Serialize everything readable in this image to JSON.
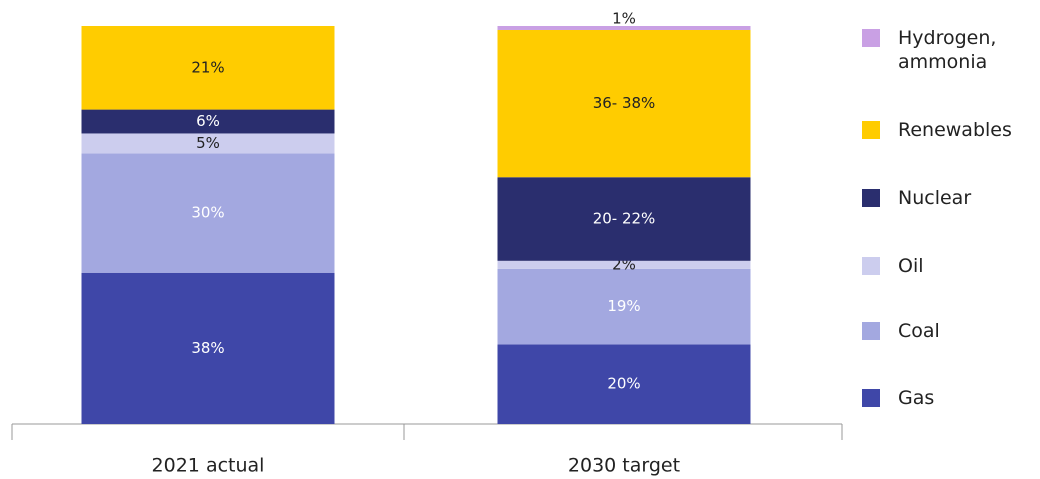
{
  "chart_data": {
    "type": "stacked-bar",
    "categories": [
      "2021 actual",
      "2030 target"
    ],
    "ylim": [
      0,
      100
    ],
    "series": [
      {
        "name": "Gas",
        "color": "#3f47a8",
        "values": [
          38,
          20
        ],
        "value_labels": [
          "38%",
          "20%"
        ]
      },
      {
        "name": "Coal",
        "color": "#a3a8e0",
        "values": [
          30,
          19
        ],
        "value_labels": [
          "30%",
          "19%"
        ]
      },
      {
        "name": "Oil",
        "color": "#cccdee",
        "values": [
          5,
          2
        ],
        "value_labels": [
          "5%",
          "2%"
        ]
      },
      {
        "name": "Nuclear",
        "color": "#2a2e6e",
        "values": [
          6,
          21
        ],
        "value_labels": [
          "6%",
          "20- 22%"
        ]
      },
      {
        "name": "Renewables",
        "color": "#ffcc00",
        "values": [
          21,
          37
        ],
        "value_labels": [
          "21%",
          "36- 38%"
        ]
      },
      {
        "name": "Hydrogen, ammonia",
        "color": "#c9a0e4",
        "values": [
          null,
          1
        ],
        "value_labels": [
          null,
          "1%"
        ]
      }
    ]
  }
}
